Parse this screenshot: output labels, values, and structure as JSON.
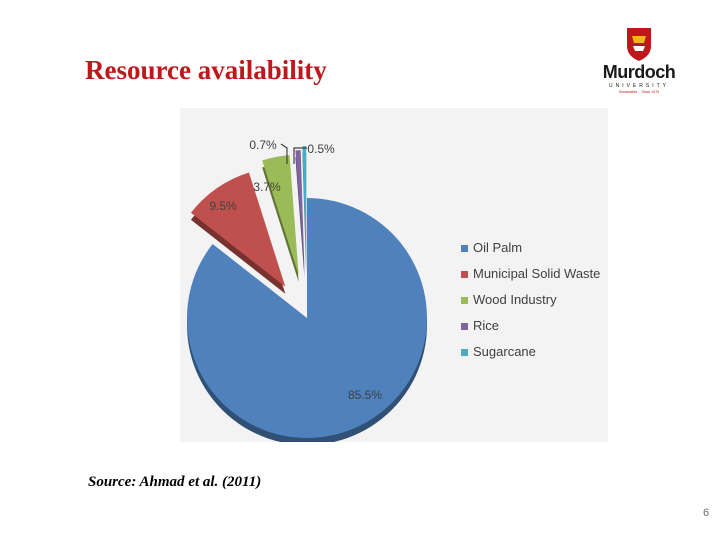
{
  "slide": {
    "title": "Resource availability",
    "source": "Source: Ahmad et al. (2011)",
    "page_number": "6"
  },
  "logo": {
    "name": "Murdoch",
    "subtitle": "UNIVERSITY",
    "tagline": "Sustainable… Since 1975",
    "colors": {
      "shield": "#c0171c",
      "accent": "#f2b51c"
    }
  },
  "chart_data": {
    "type": "pie",
    "style": "3d-exploded",
    "categories": [
      "Oil Palm",
      "Municipal Solid Waste",
      "Wood Industry",
      "Rice",
      "Sugarcane"
    ],
    "values": [
      85.5,
      9.5,
      3.7,
      0.7,
      0.5
    ],
    "data_labels": [
      "85.5%",
      "9.5%",
      "3.7%",
      "0.7%",
      "0.5%"
    ],
    "colors": [
      "#4f81bd",
      "#c0504d",
      "#9bbb59",
      "#8064a2",
      "#4bacc6"
    ],
    "legend": {
      "placement": "right",
      "entries": [
        "Oil Palm",
        "Municipal Solid Waste",
        "Wood Industry",
        "Rice",
        "Sugarcane"
      ]
    },
    "background": "#f3f3f3"
  }
}
